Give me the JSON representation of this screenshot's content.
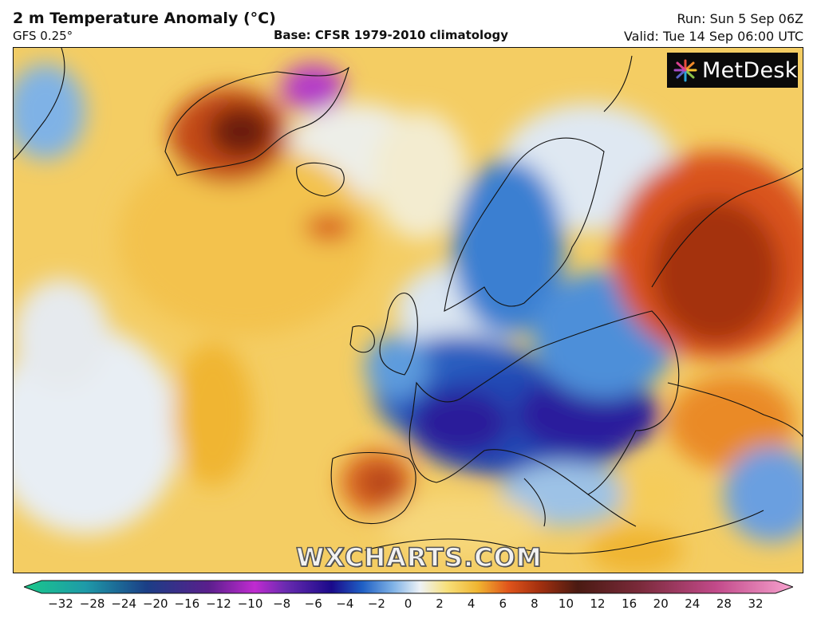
{
  "header": {
    "title": "2 m Temperature Anomaly (°C)",
    "model": "GFS 0.25°",
    "base": "Base: CFSR 1979-2010 climatology",
    "run": "Run: Sun 5 Sep 06Z",
    "valid": "Valid: Tue 14 Sep 06:00 UTC"
  },
  "branding": {
    "logo_text": "MetDesk",
    "watermark": "WXCHARTS.COM"
  },
  "colorbar": {
    "ticks": [
      "−32",
      "−28",
      "−24",
      "−20",
      "−16",
      "−12",
      "−10",
      "−8",
      "−6",
      "−4",
      "−2",
      "0",
      "2",
      "4",
      "6",
      "8",
      "10",
      "12",
      "16",
      "20",
      "24",
      "28",
      "32"
    ],
    "colors": {
      "min": "#19c98a",
      "cold_deep": "#1a0a8a",
      "cold": "#1f5fc4",
      "cool": "#7fb2e6",
      "neutral": "#eef2f6",
      "warm_light": "#f7e07a",
      "warm": "#f0b531",
      "hot": "#e0541b",
      "very_hot": "#7a1e0e",
      "max": "#f7a3cf"
    }
  }
}
